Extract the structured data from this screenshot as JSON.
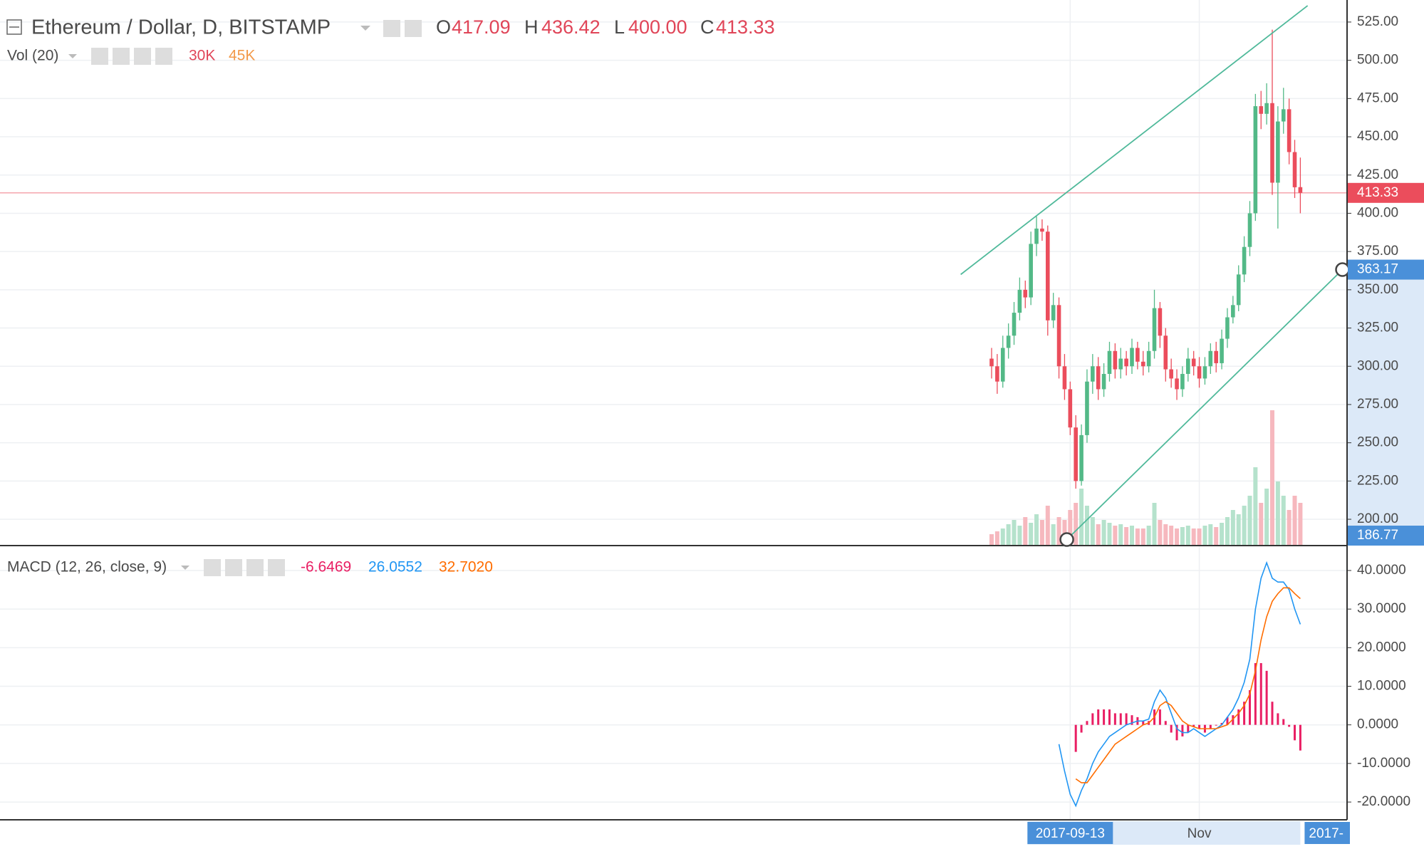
{
  "chart_data": [
    {
      "type": "candlestick",
      "title": "Ethereum / Dollar, D, BITSTAMP",
      "ohlc_letters": [
        "O",
        "H",
        "L",
        "C"
      ],
      "ohlc_labels": [
        "417.09",
        "436.42",
        "400.00",
        "413.33"
      ],
      "volume_title": "Vol (20)",
      "volume_labels": [
        "30K",
        "45K"
      ],
      "categories": [
        null,
        null,
        null,
        null,
        null,
        null,
        null,
        null,
        null,
        null,
        null,
        null,
        null,
        null,
        "2017-09-13",
        null,
        null,
        null,
        null,
        null,
        null,
        null,
        null,
        null,
        null,
        null,
        null,
        null,
        null,
        null,
        null,
        null,
        null,
        null,
        null,
        null,
        null,
        "Nov",
        null,
        null,
        null,
        null,
        null,
        null,
        null,
        null,
        null,
        null,
        null,
        null,
        null,
        null,
        null,
        null,
        null,
        null
      ],
      "x_axis_end_label": "2017-",
      "open": [
        305,
        300,
        290,
        312,
        320,
        335,
        350,
        345,
        380,
        390,
        388,
        330,
        340,
        300,
        285,
        260,
        225,
        255,
        290,
        300,
        285,
        295,
        310,
        298,
        305,
        300,
        312,
        303,
        300,
        310,
        338,
        320,
        298,
        292,
        285,
        295,
        305,
        300,
        292,
        300,
        310,
        302,
        318,
        332,
        340,
        360,
        378,
        400,
        470,
        465,
        472,
        420,
        460,
        468,
        440,
        417.09
      ],
      "high": [
        312,
        308,
        320,
        328,
        342,
        358,
        356,
        388,
        398,
        396,
        392,
        348,
        345,
        308,
        290,
        268,
        262,
        298,
        308,
        306,
        302,
        316,
        315,
        312,
        310,
        318,
        316,
        310,
        316,
        350,
        342,
        325,
        305,
        298,
        300,
        312,
        310,
        306,
        306,
        315,
        316,
        324,
        338,
        346,
        366,
        385,
        408,
        478,
        480,
        485,
        520,
        470,
        482,
        475,
        448,
        436.42
      ],
      "low": [
        292,
        282,
        286,
        305,
        314,
        330,
        338,
        340,
        372,
        382,
        320,
        325,
        292,
        278,
        255,
        220,
        222,
        250,
        282,
        278,
        280,
        290,
        292,
        292,
        294,
        295,
        298,
        294,
        296,
        305,
        312,
        290,
        286,
        278,
        280,
        290,
        294,
        286,
        288,
        295,
        296,
        298,
        312,
        328,
        336,
        355,
        372,
        395,
        455,
        458,
        412,
        390,
        452,
        432,
        410,
        400
      ],
      "close": [
        300,
        290,
        312,
        320,
        335,
        350,
        345,
        380,
        390,
        388,
        330,
        340,
        300,
        285,
        260,
        225,
        255,
        290,
        300,
        285,
        295,
        310,
        298,
        305,
        300,
        312,
        303,
        300,
        310,
        338,
        320,
        298,
        292,
        285,
        295,
        305,
        300,
        292,
        300,
        310,
        302,
        318,
        332,
        340,
        360,
        378,
        400,
        470,
        465,
        472,
        420,
        460,
        468,
        440,
        417,
        413.33
      ],
      "volume": [
        8000,
        10000,
        12000,
        15000,
        18000,
        14000,
        20000,
        16000,
        22000,
        18000,
        28000,
        15000,
        20000,
        18000,
        25000,
        30000,
        40000,
        28000,
        20000,
        15000,
        18000,
        16000,
        14000,
        15000,
        13000,
        14000,
        12000,
        12000,
        14000,
        30000,
        18000,
        15000,
        14000,
        12000,
        13000,
        14000,
        12000,
        12000,
        14000,
        15000,
        13000,
        16000,
        20000,
        25000,
        22000,
        28000,
        35000,
        55000,
        30000,
        40000,
        95000,
        45000,
        35000,
        25000,
        35000,
        30000
      ],
      "up_color": "#53b987",
      "down_color": "#eb4d5c",
      "volume_up_color": "#b5e2cc",
      "volume_down_color": "#f6b8be",
      "ylim": [
        182.8,
        539.4
      ],
      "yticks": [
        {
          "value": 200,
          "label": "200.00"
        },
        {
          "value": 225,
          "label": "225.00"
        },
        {
          "value": 250,
          "label": "250.00"
        },
        {
          "value": 275,
          "label": "275.00"
        },
        {
          "value": 300,
          "label": "300.00"
        },
        {
          "value": 325,
          "label": "325.00"
        },
        {
          "value": 350,
          "label": "350.00"
        },
        {
          "value": 375,
          "label": "375.00"
        },
        {
          "value": 400,
          "label": "400.00"
        },
        {
          "value": 425,
          "label": "425.00"
        },
        {
          "value": 450,
          "label": "450.00"
        },
        {
          "value": 475,
          "label": "475.00"
        },
        {
          "value": 500,
          "label": "500.00"
        },
        {
          "value": 525,
          "label": "525.00"
        }
      ],
      "grid": true,
      "last_price": {
        "value": 413.33,
        "label": "413.33"
      },
      "markers": [
        {
          "value": 363.17,
          "label": "363.17"
        },
        {
          "value": 186.77,
          "label": "186.77"
        }
      ],
      "trendline_color": "#4fb99a",
      "trendlines": [
        {
          "x": [
            -5.5,
            56.3
          ],
          "y": [
            360,
            535.7
          ]
        },
        {
          "x": [
            13.4,
            62.5
          ],
          "y": [
            186.77,
            363.17
          ]
        }
      ]
    },
    {
      "type": "macd",
      "title": "MACD (12, 26, close, 9)",
      "last_labels": [
        "-6.6469",
        "26.0552",
        "32.7020"
      ],
      "histogram": {
        "color": "#e91e63",
        "values": [
          null,
          null,
          null,
          null,
          null,
          null,
          null,
          null,
          null,
          null,
          null,
          null,
          null,
          null,
          null,
          -7,
          -2,
          1,
          3,
          4,
          4,
          4,
          3,
          3,
          3,
          2.5,
          2,
          1,
          1,
          4,
          4,
          1,
          -2,
          -4,
          -3,
          -2,
          -0.5,
          -1,
          -2,
          -1,
          0,
          0.5,
          2,
          2.5,
          4,
          6,
          9,
          16,
          16,
          14,
          6,
          3,
          1.5,
          -0.5,
          -4,
          -6.6469
        ]
      },
      "macd": {
        "color": "#2196f3",
        "values": [
          null,
          null,
          null,
          null,
          null,
          null,
          null,
          null,
          null,
          null,
          null,
          null,
          -5,
          -12,
          -18,
          -21,
          -17,
          -14,
          -10,
          -7,
          -5,
          -3,
          -2,
          -1,
          0,
          0.5,
          1,
          1,
          1.5,
          6,
          9,
          7,
          3,
          -1,
          -2,
          -2,
          -1,
          -2,
          -3,
          -2,
          -1,
          0,
          2,
          4,
          7,
          11,
          17,
          30,
          38,
          42,
          38,
          37,
          37,
          35,
          30,
          26.0552
        ]
      },
      "signal": {
        "color": "#ff6d00",
        "values": [
          null,
          null,
          null,
          null,
          null,
          null,
          null,
          null,
          null,
          null,
          null,
          null,
          null,
          null,
          null,
          -14,
          -15,
          -15,
          -13,
          -11,
          -9,
          -7,
          -5,
          -4,
          -3,
          -2,
          -1,
          0,
          0.5,
          2,
          5,
          6,
          5,
          3,
          1,
          0,
          -0.5,
          -1,
          -1,
          -1,
          -1,
          -0.5,
          0,
          1.5,
          3,
          5,
          8,
          14,
          22,
          28,
          32,
          34,
          35.5,
          35.5,
          34,
          32.702
        ]
      },
      "ylim": [
        -24.6,
        45.9
      ],
      "yticks": [
        {
          "value": 40,
          "label": "40.0000"
        },
        {
          "value": 30,
          "label": "30.0000"
        },
        {
          "value": 20,
          "label": "20.0000"
        },
        {
          "value": 10,
          "label": "10.0000"
        },
        {
          "value": 0,
          "label": "0.0000"
        },
        {
          "value": -10,
          "label": "-10.0000"
        },
        {
          "value": -20,
          "label": "-20.0000"
        }
      ],
      "grid": true
    }
  ]
}
